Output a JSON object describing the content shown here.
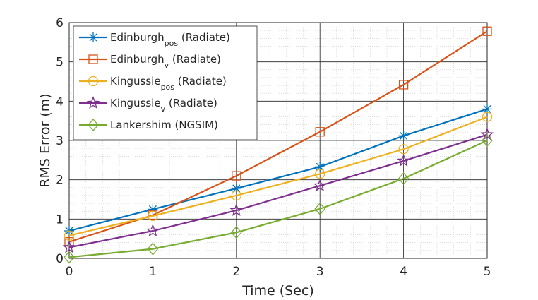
{
  "chart_data": {
    "type": "line",
    "title": "",
    "xlabel": "Time (Sec)",
    "ylabel": "RMS Error (m)",
    "xlim": [
      0,
      5
    ],
    "ylim": [
      0,
      6
    ],
    "x_ticks": [
      0,
      1,
      2,
      3,
      4,
      5
    ],
    "y_ticks": [
      0,
      1,
      2,
      3,
      4,
      5,
      6
    ],
    "grid": true,
    "minor_grid": true,
    "legend_position": "top-left",
    "x": [
      0,
      1,
      2,
      3,
      4,
      5
    ],
    "series": [
      {
        "name": "Edinburgh",
        "subscript": "pos",
        "suffix": " (Radiate)",
        "color": "#0072BD",
        "marker": "asterisk",
        "values": [
          0.7,
          1.25,
          1.78,
          2.33,
          3.12,
          3.8
        ]
      },
      {
        "name": "Edinburgh",
        "subscript": "v",
        "suffix": " (Radiate)",
        "color": "#D95319",
        "marker": "square",
        "values": [
          0.42,
          1.1,
          2.1,
          3.22,
          4.42,
          5.78
        ]
      },
      {
        "name": "Kingussie",
        "subscript": "pos",
        "suffix": " (Radiate)",
        "color": "#EDB120",
        "marker": "circle",
        "values": [
          0.58,
          1.08,
          1.6,
          2.15,
          2.78,
          3.6
        ]
      },
      {
        "name": "Kingussie",
        "subscript": "v",
        "suffix": " (Radiate)",
        "color": "#7E2F8E",
        "marker": "star",
        "values": [
          0.28,
          0.7,
          1.22,
          1.85,
          2.48,
          3.15
        ]
      },
      {
        "name": "Lankershim (NGSIM)",
        "subscript": "",
        "suffix": "",
        "color": "#77AC30",
        "marker": "diamond",
        "values": [
          0.03,
          0.24,
          0.66,
          1.26,
          2.03,
          3.0
        ]
      }
    ]
  }
}
